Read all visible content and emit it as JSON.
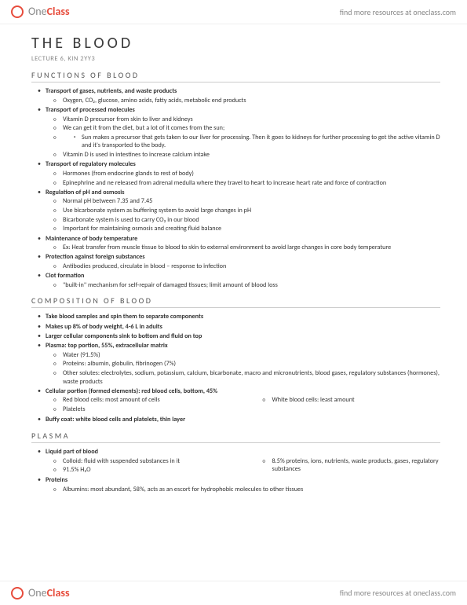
{
  "brand": {
    "one": "One",
    "class": "Class"
  },
  "resourceLink": "find more resources at oneclass.com",
  "title": "THE BLOOD",
  "subtitle": "LECTURE 6, KIN 2YY3",
  "sections": {
    "functions": {
      "heading": "FUNCTIONS OF BLOOD",
      "items": [
        {
          "label": "Transport of gases, nutrients, and waste products",
          "sub": [
            "Oxygen, CO₂, glucose, amino acids, fatty acids, metabolic end products"
          ]
        },
        {
          "label": "Transport of processed molecules",
          "sub": [
            "Vitamin D precursor from skin to liver and kidneys",
            "We can get it from the diet, but a lot of it comes from the sun;",
            {
              "text": "",
              "sub3": [
                "Sun makes a precursor that gets taken to our liver for processing. Then it goes to kidneys for further processing to get the active vitamin D and it's transported to the body."
              ]
            },
            "Vitamin D is used in intestines to increase calcium intake"
          ]
        },
        {
          "label": "Transport of regulatory molecules",
          "sub": [
            "Hormones (from endocrine glands to rest of body)",
            "Epinephrine and ne released from adrenal medulla where they travel to heart to increase heart rate and force of contraction"
          ]
        },
        {
          "label": "Regulation of pH and osmosis",
          "sub": [
            "Normal pH between 7.35 and 7.45",
            "Use bicarbonate system as buffering system to avoid large changes in pH",
            "Bicarbonate system is used to carry CO₂ in our blood",
            "Important for maintaining osmosis and creating fluid balance"
          ]
        },
        {
          "label": "Maintenance of body temperature",
          "sub": [
            "Ex: Heat transfer from muscle tissue to blood to skin to external environment to avoid large changes in core body temperature"
          ]
        },
        {
          "label": "Protection against foreign substances",
          "sub": [
            "Antibodies produced, circulate in blood – response to infection"
          ]
        },
        {
          "label": "Clot formation",
          "sub": [
            "\"built-in\" mechanism for self-repair of damaged tissues; limit amount of blood loss"
          ]
        }
      ]
    },
    "composition": {
      "heading": "COMPOSITION OF BLOOD",
      "items": [
        {
          "label": "Take blood samples and spin them to separate components"
        },
        {
          "label": "Makes up 8% of body weight, 4-6 L in adults"
        },
        {
          "label": "Larger cellular components sink to bottom and fluid on top"
        },
        {
          "label": "Plasma: top portion, 55%, extracellular matrix",
          "sub": [
            "Water (91.5%)",
            "Proteins: albumin, globulin, fibrinogen (7%)",
            "Other solutes: electrolytes, sodium, potassium, calcium, bicarbonate, macro and micronutrients, blood gases, regulatory substances (hormones), waste products"
          ]
        },
        {
          "label": "Cellular portion (formed elements): red blood cells, bottom, 45%",
          "twoCol": {
            "left": [
              "Red blood cells: most amount of cells",
              "Platelets"
            ],
            "right": [
              "White blood cells: least amount"
            ]
          }
        },
        {
          "label": "Buffy coat: white blood cells and platelets, thin layer"
        }
      ]
    },
    "plasma": {
      "heading": "PLASMA",
      "items": [
        {
          "label": "Liquid part of blood",
          "twoCol": {
            "left": [
              "Colloid: fluid with suspended substances in it",
              "91.5% H₂O"
            ],
            "right": [
              "8.5% proteins, ions, nutrients, waste products, gases, regulatory substances"
            ]
          }
        },
        {
          "label": "Proteins",
          "sub": [
            "Albumins: most abundant, 58%, acts as an escort for hydrophobic molecules to other tissues"
          ]
        }
      ]
    }
  }
}
